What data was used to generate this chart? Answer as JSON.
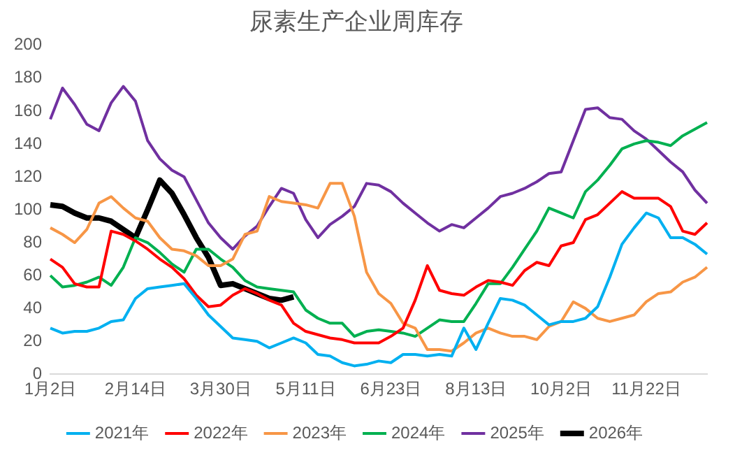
{
  "chart_data": {
    "type": "line",
    "title": "尿素生产企业周库存",
    "categories": [
      "1月2日",
      null,
      null,
      null,
      null,
      null,
      null,
      "2月14日",
      null,
      null,
      null,
      null,
      null,
      null,
      "3月30日",
      null,
      null,
      null,
      null,
      null,
      null,
      "5月11日",
      null,
      null,
      null,
      null,
      null,
      null,
      "6月23日",
      null,
      null,
      null,
      null,
      null,
      null,
      "8月13日",
      null,
      null,
      null,
      null,
      null,
      null,
      "10月2日",
      null,
      null,
      null,
      null,
      null,
      null,
      "11月22日",
      null,
      null,
      null,
      null,
      null
    ],
    "ylim": [
      0,
      200
    ],
    "yticks": [
      0,
      20,
      40,
      60,
      80,
      100,
      120,
      140,
      160,
      180,
      200
    ],
    "grid": false,
    "legend": "bottom",
    "marker": "none",
    "line_style": "solid",
    "series": [
      {
        "name": "2021年",
        "color": "#00b0f0",
        "values": [
          28,
          25,
          26,
          26,
          28,
          32,
          33,
          46,
          52,
          53,
          54,
          55,
          46,
          36,
          29,
          22,
          21,
          20,
          16,
          19,
          22,
          19,
          12,
          11,
          7,
          5,
          6,
          8,
          7,
          12,
          12,
          11,
          12,
          11,
          28,
          15,
          31,
          46,
          45,
          42,
          36,
          30,
          32,
          32,
          34,
          41,
          59,
          79,
          89,
          98,
          95,
          83,
          83,
          79,
          73
        ]
      },
      {
        "name": "2022年",
        "color": "#ff0000",
        "values": [
          70,
          65,
          55,
          53,
          53,
          87,
          85,
          81,
          76,
          70,
          65,
          58,
          48,
          41,
          42,
          48,
          52,
          49,
          45,
          42,
          31,
          26,
          24,
          22,
          21,
          19,
          19,
          19,
          23,
          28,
          45,
          66,
          51,
          49,
          48,
          53,
          57,
          56,
          54,
          63,
          68,
          66,
          78,
          80,
          94,
          97,
          104,
          111,
          107,
          107,
          107,
          102,
          87,
          85,
          92
        ]
      },
      {
        "name": "2023年",
        "color": "#f79646",
        "values": [
          89,
          85,
          80,
          88,
          104,
          108,
          101,
          95,
          93,
          83,
          76,
          75,
          72,
          66,
          66,
          70,
          85,
          87,
          108,
          105,
          104,
          103,
          101,
          116,
          116,
          96,
          62,
          49,
          43,
          31,
          28,
          15,
          15,
          14,
          19,
          25,
          28,
          25,
          23,
          23,
          21,
          29,
          32,
          44,
          40,
          34,
          32,
          34,
          36,
          44,
          49,
          50,
          56,
          59,
          65
        ]
      },
      {
        "name": "2024年",
        "color": "#00b050",
        "values": [
          60,
          53,
          54,
          56,
          59,
          54,
          65,
          83,
          80,
          74,
          67,
          62,
          76,
          76,
          70,
          65,
          57,
          53,
          52,
          51,
          50,
          39,
          34,
          31,
          31,
          23,
          26,
          27,
          26,
          25,
          23,
          28,
          33,
          32,
          32,
          43,
          55,
          55,
          65,
          76,
          87,
          101,
          98,
          95,
          111,
          118,
          127,
          137,
          140,
          142,
          141,
          139,
          145,
          149,
          153
        ]
      },
      {
        "name": "2025年",
        "color": "#7030a0",
        "values": [
          155,
          174,
          164,
          152,
          148,
          165,
          175,
          166,
          142,
          131,
          124,
          120,
          106,
          92,
          83,
          76,
          84,
          90,
          102,
          113,
          110,
          94,
          83,
          91,
          96,
          102,
          116,
          115,
          111,
          104,
          98,
          92,
          87,
          91,
          89,
          95,
          101,
          108,
          110,
          113,
          117,
          122,
          123,
          142,
          161,
          162,
          156,
          155,
          148,
          143,
          136,
          129,
          123,
          112,
          104
        ]
      },
      {
        "name": "2026年",
        "color": "#000000",
        "values": [
          103,
          102,
          98,
          95,
          95,
          93,
          88,
          83,
          100,
          118,
          110,
          97,
          83,
          71,
          54,
          55,
          52,
          49,
          46,
          45,
          47,
          null,
          null,
          null,
          null,
          null,
          null,
          null,
          null,
          null,
          null,
          null,
          null,
          null,
          null,
          null,
          null,
          null,
          null,
          null,
          null,
          null,
          null,
          null,
          null,
          null,
          null,
          null,
          null,
          null,
          null,
          null,
          null,
          null,
          null
        ]
      }
    ]
  }
}
